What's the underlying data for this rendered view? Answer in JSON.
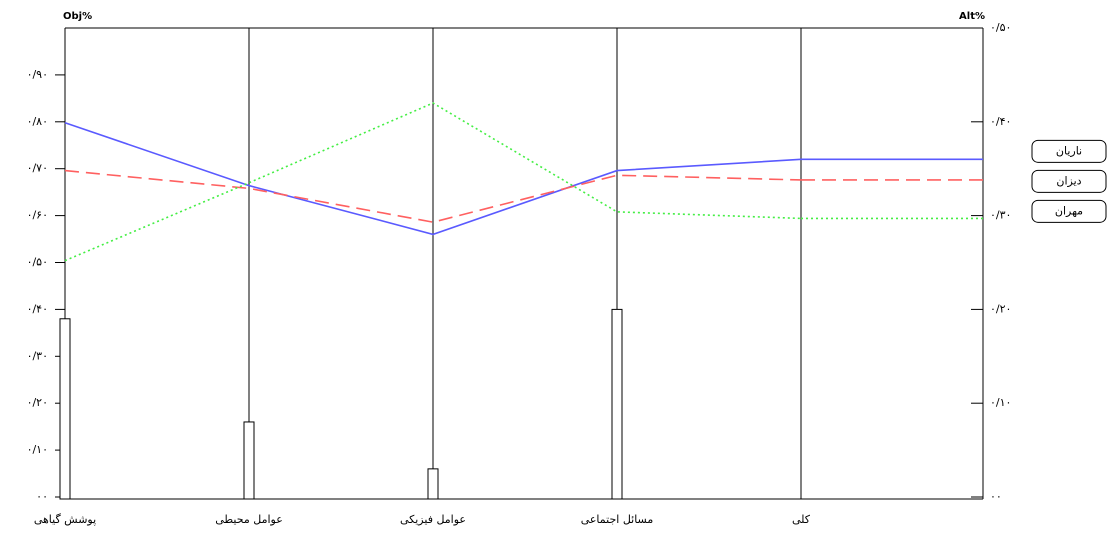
{
  "chart_data": {
    "type": "sensitivity",
    "y_label": "Obj%",
    "y2_label": "Alt%",
    "categories": [
      "پوشش گیاهی",
      "عوامل محیطی",
      "عوامل فیزیکی",
      "مسائل اجتماعی",
      "کلی"
    ],
    "values": [
      0.38,
      0.16,
      0.06,
      0.4,
      null
    ],
    "bar_color": "#ffffff",
    "ylim": [
      0,
      1
    ],
    "yticks": [
      {
        "value": 0,
        "label": "۰۰"
      },
      {
        "value": 0.1,
        "label": "۰/۱۰"
      },
      {
        "value": 0.2,
        "label": "۰/۲۰"
      },
      {
        "value": 0.3,
        "label": "۰/۳۰"
      },
      {
        "value": 0.4,
        "label": "۰/۴۰"
      },
      {
        "value": 0.5,
        "label": "۰/۵۰"
      },
      {
        "value": 0.6,
        "label": "۰/۶۰"
      },
      {
        "value": 0.7,
        "label": "۰/۷۰"
      },
      {
        "value": 0.8,
        "label": "۰/۸۰"
      },
      {
        "value": 0.9,
        "label": "۰/۹۰"
      }
    ],
    "y2lim": [
      0,
      0.5
    ],
    "y2ticks": [
      {
        "value": 0,
        "label": "۰۰"
      },
      {
        "value": 0.1,
        "label": "۰/۱۰"
      },
      {
        "value": 0.2,
        "label": "۰/۲۰"
      },
      {
        "value": 0.3,
        "label": "۰/۳۰"
      },
      {
        "value": 0.4,
        "label": "۰/۴۰"
      },
      {
        "value": 0.5,
        "label": "۰/۵۰"
      }
    ],
    "series": [
      {
        "name": "ناریان",
        "color": "#5a5aff",
        "dash": "solid",
        "axis": "y2",
        "values": [
          0.399,
          0.332,
          0.28,
          0.348,
          0.36
        ]
      },
      {
        "name": "دیزان",
        "color": "#ff6060",
        "dash": "dashed",
        "axis": "y2",
        "values": [
          0.348,
          0.329,
          0.293,
          0.343,
          0.338
        ]
      },
      {
        "name": "مهران",
        "color": "#44ee44",
        "dash": "dotted",
        "axis": "y2",
        "values": [
          0.252,
          0.335,
          0.42,
          0.304,
          0.297
        ]
      }
    ]
  }
}
